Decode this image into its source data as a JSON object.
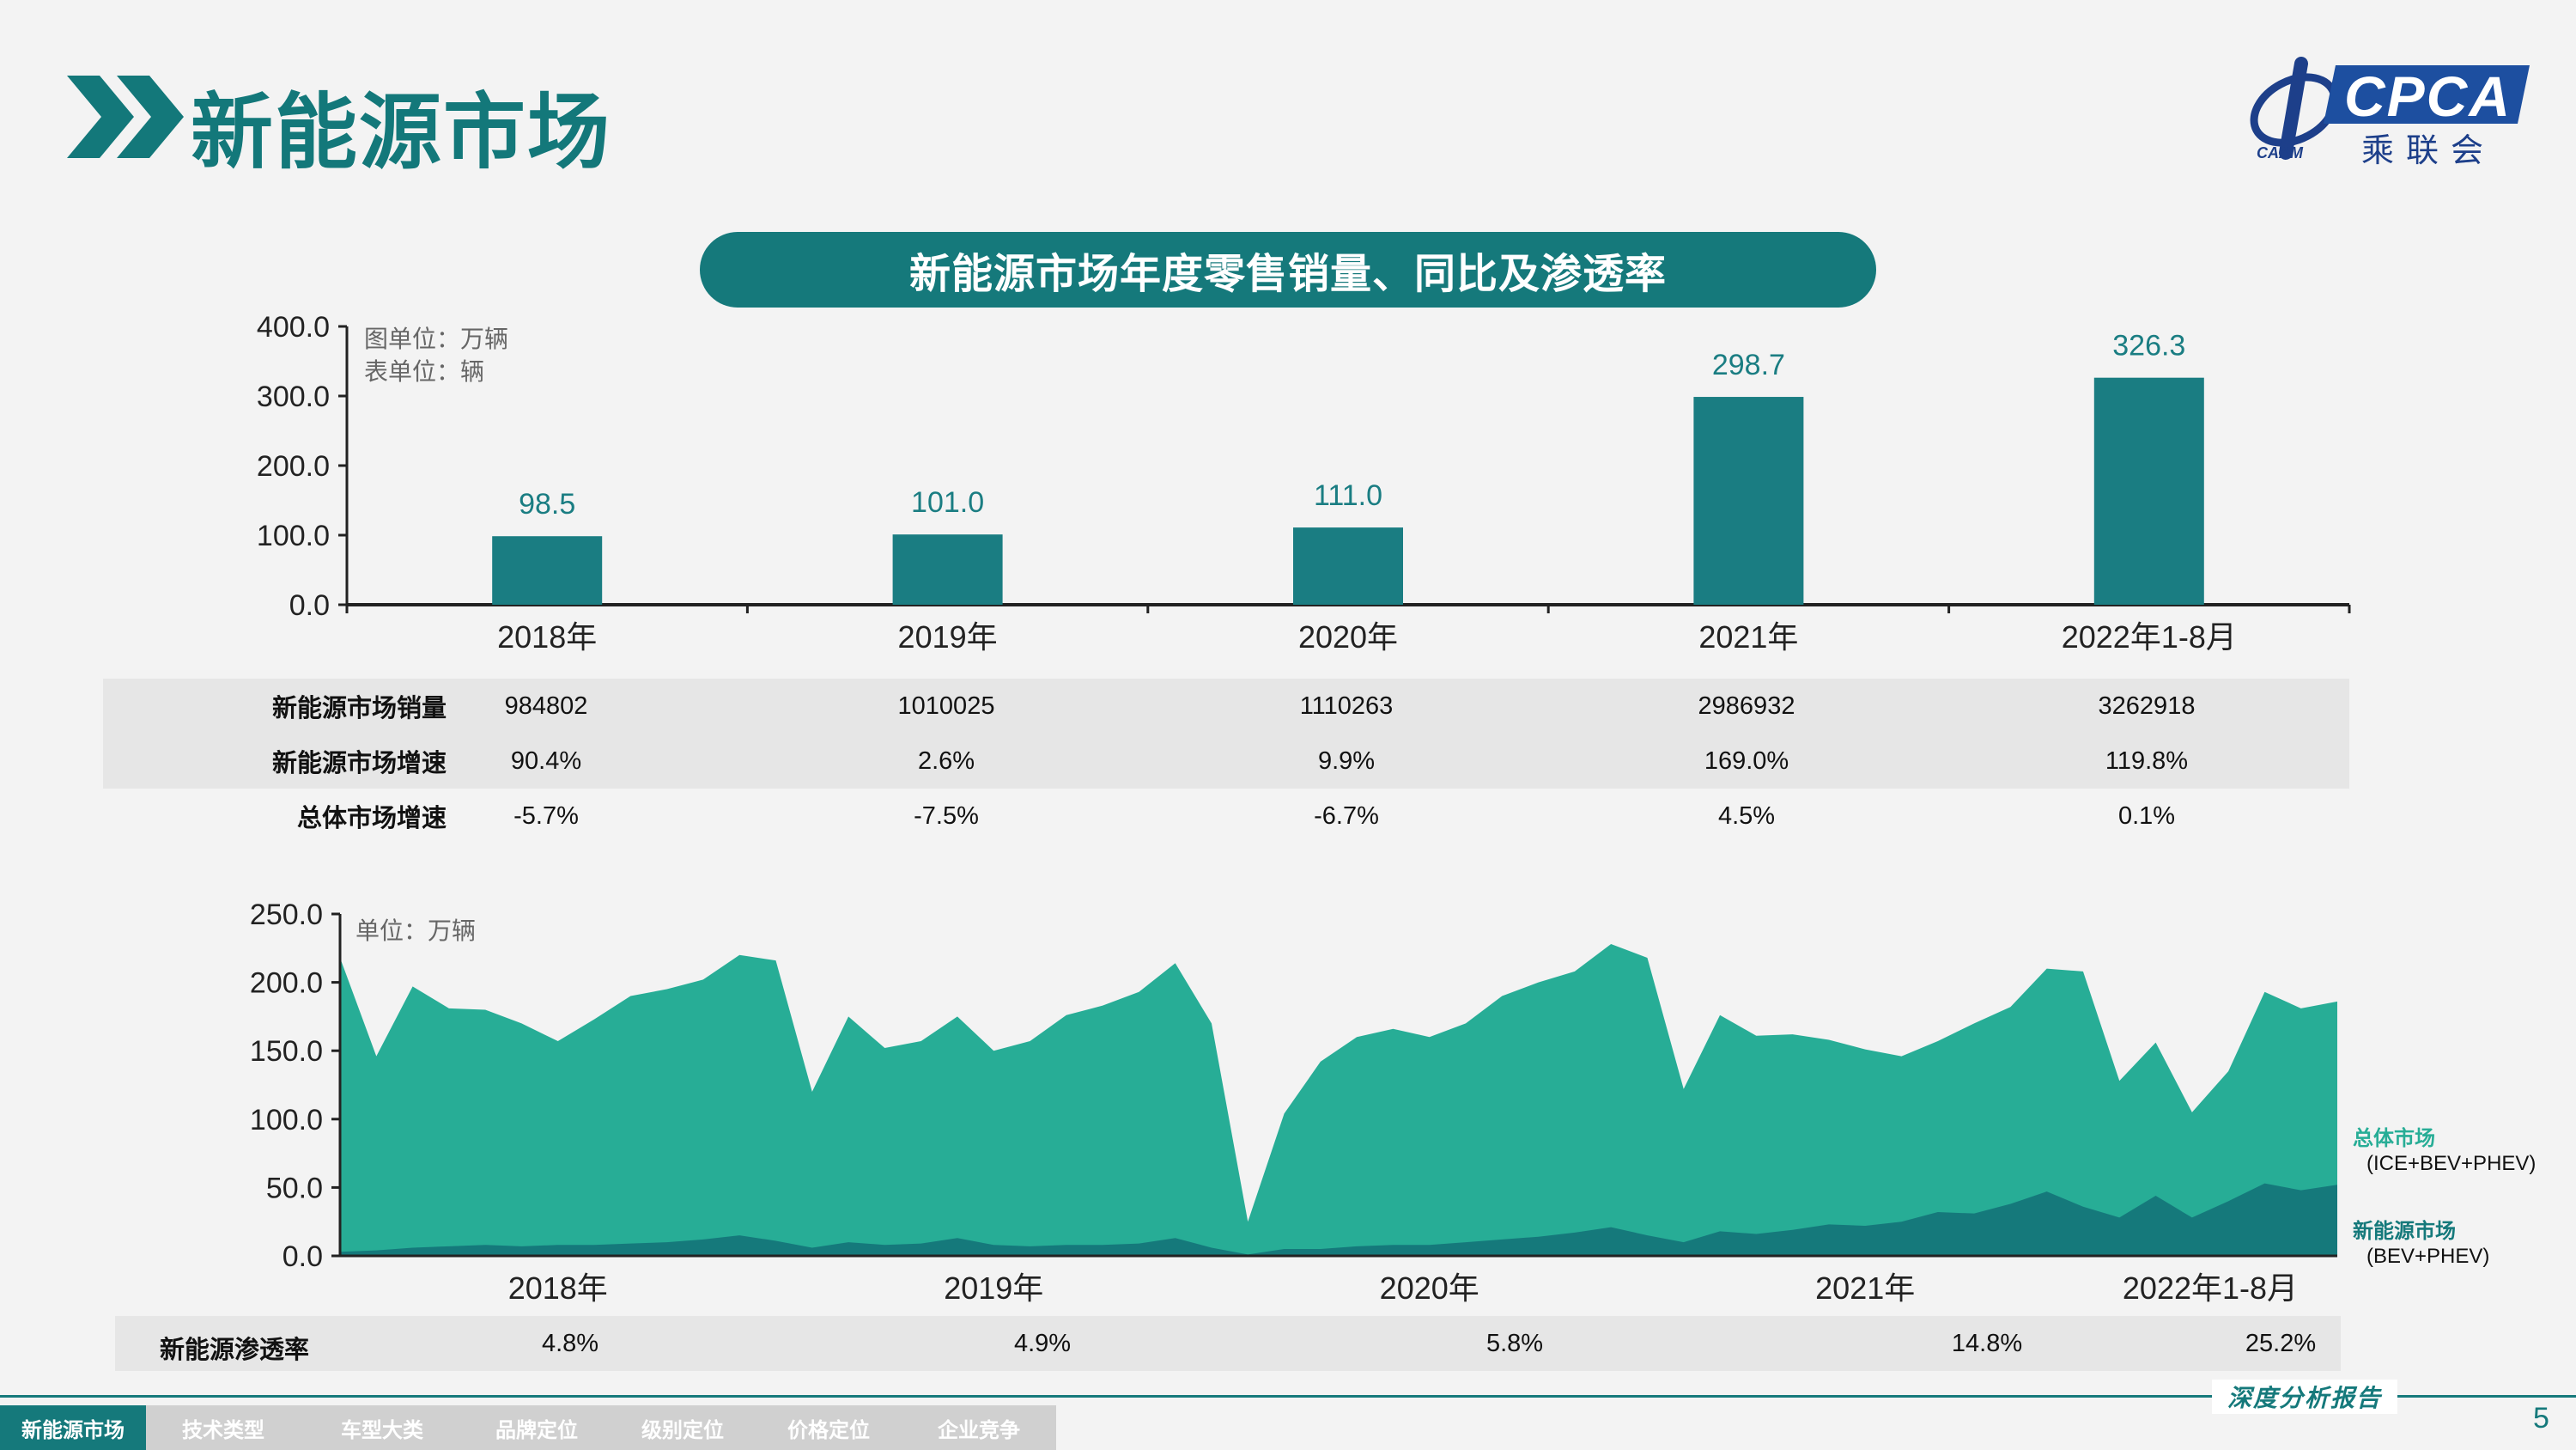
{
  "header": {
    "title": "新能源市场",
    "logo_latin": "CPCA",
    "logo_cn": "乘联会",
    "logo_small": "CAAM"
  },
  "banner": "新能源市场年度零售销量、同比及渗透率",
  "notes": {
    "chart_unit": "图单位：万辆",
    "table_unit": "表单位：辆",
    "area_unit": "单位：万辆"
  },
  "colors": {
    "primary": "#15797b",
    "bar": "#1a7d82",
    "area_total": "#27ad96",
    "area_nev": "#15797b"
  },
  "chart_data": [
    {
      "type": "bar",
      "categories": [
        "2018年",
        "2019年",
        "2020年",
        "2021年",
        "2022年1-8月"
      ],
      "values": [
        98.5,
        101.0,
        111.0,
        298.7,
        326.3
      ],
      "value_labels": [
        "98.5",
        "101.0",
        "111.0",
        "298.7",
        "326.3"
      ],
      "ylim": [
        0,
        400
      ],
      "yticks": [
        "0.0",
        "100.0",
        "200.0",
        "300.0",
        "400.0"
      ],
      "grid": false
    },
    {
      "type": "area",
      "x_labels": [
        "2018年",
        "2019年",
        "2020年",
        "2021年",
        "2022年1-8月"
      ],
      "ylim": [
        0,
        250
      ],
      "yticks": [
        "0.0",
        "50.0",
        "100.0",
        "150.0",
        "200.0",
        "250.0"
      ],
      "series": [
        {
          "name": "总体市场",
          "sub": "(ICE+BEV+PHEV)",
          "values": [
            218,
            146,
            197,
            181,
            180,
            170,
            157,
            173,
            190,
            195,
            202,
            220,
            216,
            120,
            175,
            152,
            157,
            175,
            150,
            157,
            176,
            183,
            193,
            214,
            170,
            25,
            104,
            142,
            160,
            166,
            160,
            170,
            190,
            200,
            208,
            228,
            218,
            122,
            176,
            161,
            162,
            158,
            151,
            146,
            157,
            170,
            182,
            210,
            208,
            128,
            156,
            105,
            135,
            193,
            181,
            186
          ]
        },
        {
          "name": "新能源市场",
          "sub": "(BEV+PHEV)",
          "values": [
            3,
            4,
            6,
            7,
            8,
            7,
            8,
            8,
            9,
            10,
            12,
            15,
            11,
            6,
            10,
            8,
            9,
            13,
            8,
            7,
            8,
            8,
            9,
            13,
            6,
            1,
            5,
            5,
            7,
            8,
            8,
            10,
            12,
            14,
            17,
            21,
            15,
            10,
            18,
            16,
            19,
            23,
            22,
            25,
            32,
            31,
            38,
            47,
            36,
            28,
            44,
            28,
            40,
            53,
            48,
            52
          ]
        }
      ],
      "year_break_index": [
        0,
        12,
        24,
        36,
        48
      ]
    }
  ],
  "table": {
    "rows": [
      {
        "label": "新能源市场销量",
        "values": [
          "984802",
          "1010025",
          "1110263",
          "2986932",
          "3262918"
        ]
      },
      {
        "label": "新能源市场增速",
        "values": [
          "90.4%",
          "2.6%",
          "9.9%",
          "169.0%",
          "119.8%"
        ]
      },
      {
        "label": "总体市场增速",
        "values": [
          "-5.7%",
          "-7.5%",
          "-6.7%",
          "4.5%",
          "0.1%"
        ]
      }
    ]
  },
  "penetration": {
    "label": "新能源渗透率",
    "values": [
      "4.8%",
      "4.9%",
      "5.8%",
      "14.8%",
      "25.2%"
    ]
  },
  "footer": {
    "note": "深度分析报告",
    "page": "5",
    "tabs": [
      "新能源市场",
      "技术类型",
      "车型大类",
      "品牌定位",
      "级别定位",
      "价格定位",
      "企业竞争"
    ]
  }
}
